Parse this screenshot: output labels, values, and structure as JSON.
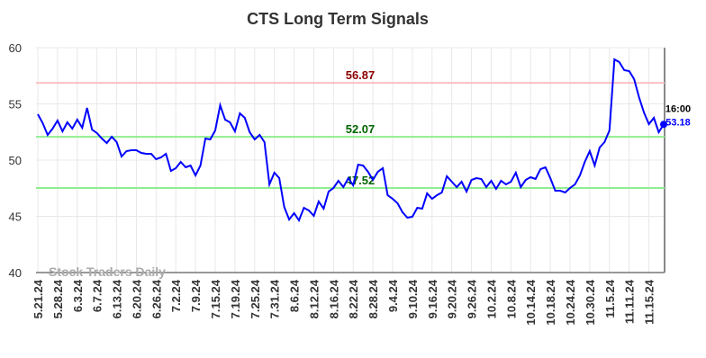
{
  "chart_data": {
    "type": "line",
    "title": "CTS Long Term Signals",
    "watermark": "Stock Traders Daily",
    "categories": [
      "5.21.24",
      null,
      null,
      null,
      "5.28.24",
      null,
      null,
      null,
      "6.3.24",
      null,
      null,
      null,
      "6.7.24",
      null,
      null,
      null,
      "6.13.24",
      null,
      null,
      null,
      "6.20.24",
      null,
      null,
      null,
      "6.26.24",
      null,
      null,
      null,
      "7.2.24",
      null,
      null,
      null,
      "7.9.24",
      null,
      null,
      null,
      "7.15.24",
      null,
      null,
      null,
      "7.19.24",
      null,
      null,
      null,
      "7.25.24",
      null,
      null,
      null,
      "7.31.24",
      null,
      null,
      null,
      "8.6.24",
      null,
      null,
      null,
      "8.12.24",
      null,
      null,
      null,
      "8.16.24",
      null,
      null,
      null,
      "8.22.24",
      null,
      null,
      null,
      "8.28.24",
      null,
      null,
      null,
      "9.4.24",
      null,
      null,
      null,
      "9.10.24",
      null,
      null,
      null,
      "9.16.24",
      null,
      null,
      null,
      "9.20.24",
      null,
      null,
      null,
      "9.26.24",
      null,
      null,
      null,
      "10.2.24",
      null,
      null,
      null,
      "10.8.24",
      null,
      null,
      null,
      "10.14.24",
      null,
      null,
      null,
      "10.18.24",
      null,
      null,
      null,
      "10.24.24",
      null,
      null,
      null,
      "10.30.24",
      null,
      null,
      null,
      "11.5.24",
      null,
      null,
      null,
      "11.11.24",
      null,
      null,
      null,
      "11.15.24",
      null,
      null,
      null
    ],
    "series": [
      {
        "color": "#0000ff",
        "values": [
          54.08,
          53.28,
          52.24,
          52.8,
          53.52,
          52.56,
          53.36,
          52.8,
          53.6,
          52.88,
          54.64,
          52.72,
          52.4,
          51.92,
          51.52,
          52.08,
          51.6,
          50.32,
          50.8,
          50.88,
          50.88,
          50.64,
          50.56,
          50.56,
          50.08,
          50.24,
          50.56,
          49.04,
          49.28,
          49.84,
          49.36,
          49.52,
          48.64,
          49.52,
          51.92,
          51.84,
          52.64,
          54.88,
          53.6,
          53.36,
          52.56,
          54.16,
          53.76,
          52.48,
          51.84,
          52.24,
          51.6,
          47.84,
          48.88,
          48.4,
          45.84,
          44.72,
          45.28,
          44.64,
          45.76,
          45.52,
          45.04,
          46.32,
          45.68,
          47.2,
          47.52,
          48.16,
          47.6,
          48.4,
          47.76,
          49.6,
          49.52,
          48.96,
          48.24,
          48.96,
          49.28,
          46.88,
          46.56,
          46.16,
          45.36,
          44.88,
          44.96,
          45.76,
          45.68,
          47.04,
          46.56,
          46.88,
          47.12,
          48.56,
          48.08,
          47.6,
          48.08,
          47.2,
          48.24,
          48.4,
          48.32,
          47.6,
          48.16,
          47.44,
          48.16,
          47.84,
          48.08,
          48.88,
          47.6,
          48.24,
          48.48,
          48.32,
          49.2,
          49.36,
          48.4,
          47.28,
          47.28,
          47.12,
          47.52,
          47.84,
          48.64,
          49.84,
          50.8,
          49.52,
          51.12,
          51.6,
          52.64,
          58.96,
          58.72,
          58.0,
          57.92,
          57.2,
          55.6,
          54.24,
          53.2,
          53.76,
          52.48,
          53.18
        ]
      }
    ],
    "last_label": "16:00",
    "hlines": [
      {
        "value": 56.87,
        "color": "#ffc0c0",
        "label_color": "#8b0000"
      },
      {
        "value": 52.07,
        "color": "#90ee90",
        "label_color": "#006400"
      },
      {
        "value": 47.52,
        "color": "#90ee90",
        "label_color": "#006400"
      }
    ],
    "ylim": [
      40,
      60
    ],
    "yticks": [
      40,
      45,
      50,
      55,
      60
    ],
    "grid": true
  }
}
